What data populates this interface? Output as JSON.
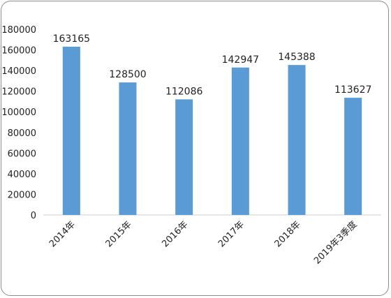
{
  "chart_data": {
    "type": "bar",
    "categories": [
      "2014年",
      "2015年",
      "2016年",
      "2017年",
      "2018年",
      "2019年3季度"
    ],
    "values": [
      163165,
      128500,
      112086,
      142947,
      145388,
      113627
    ],
    "data_labels": [
      "163165",
      "128500",
      "112086",
      "142947",
      "145388",
      "113627"
    ],
    "y_ticks": [
      "0",
      "20000",
      "40000",
      "60000",
      "80000",
      "100000",
      "120000",
      "140000",
      "160000",
      "180000"
    ],
    "ylim": [
      0,
      180000
    ],
    "grid": false,
    "legend": "none",
    "bar_color": "#5b9bd5"
  }
}
